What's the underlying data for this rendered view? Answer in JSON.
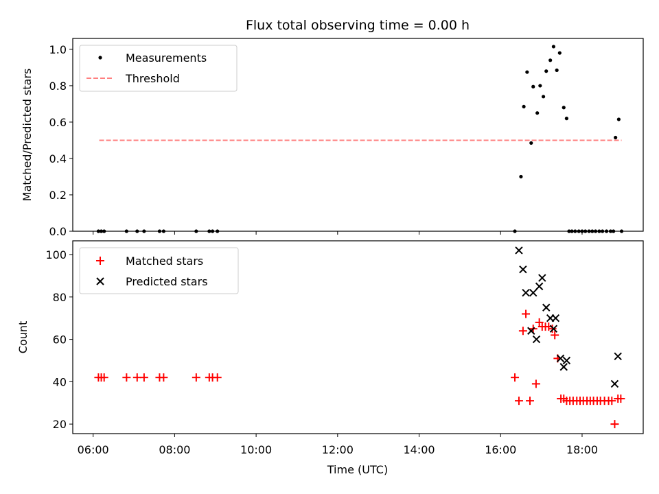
{
  "chart_data": {
    "title": "Flux total observing time = 0.00 h",
    "xlabel": "Time (UTC)",
    "x_unit": "hours UTC",
    "xlim": [
      5.5,
      19.5
    ],
    "xticks": [
      6,
      8,
      10,
      12,
      14,
      16,
      18
    ],
    "xtick_labels": [
      "06:00",
      "08:00",
      "10:00",
      "12:00",
      "14:00",
      "16:00",
      "18:00"
    ],
    "panels": [
      {
        "type": "scatter",
        "ylabel": "Matched/Predicted stars",
        "ylim": [
          0,
          1.06
        ],
        "yticks": [
          0.0,
          0.2,
          0.4,
          0.6,
          0.8,
          1.0
        ],
        "ytick_labels": [
          "0.0",
          "0.2",
          "0.4",
          "0.6",
          "0.8",
          "1.0"
        ],
        "legend": "top-left",
        "series": [
          {
            "name": "Measurements",
            "color": "#000000",
            "marker": "dot",
            "x": [
              6.13,
              6.2,
              6.27,
              6.82,
              7.08,
              7.25,
              7.63,
              7.73,
              8.53,
              8.85,
              8.93,
              9.05,
              16.35,
              16.5,
              16.57,
              16.65,
              16.75,
              16.8,
              16.9,
              16.97,
              17.05,
              17.12,
              17.22,
              17.3,
              17.38,
              17.45,
              17.55,
              17.62,
              17.68,
              17.75,
              17.83,
              17.92,
              18.0,
              18.08,
              18.17,
              18.25,
              18.33,
              18.42,
              18.5,
              18.6,
              18.7,
              18.77,
              18.82,
              18.9,
              18.97
            ],
            "y": [
              0,
              0,
              0,
              0,
              0,
              0,
              0,
              0,
              0,
              0,
              0,
              0,
              0,
              0.3,
              0.685,
              0.875,
              0.485,
              0.795,
              0.65,
              0.8,
              0.74,
              0.88,
              0.94,
              1.015,
              0.885,
              0.98,
              0.68,
              0.62,
              0,
              0,
              0,
              0,
              0,
              0,
              0,
              0,
              0,
              0,
              0,
              0,
              0,
              0,
              0.515,
              0.615,
              0
            ]
          },
          {
            "name": "Threshold",
            "color": "#ff7f7f",
            "marker": "dashed-line",
            "x": [
              6.15,
              18.97
            ],
            "y": [
              0.5,
              0.5
            ]
          }
        ]
      },
      {
        "type": "scatter",
        "ylabel": "Count",
        "ylim": [
          15.5,
          106.5
        ],
        "yticks": [
          20,
          40,
          60,
          80,
          100
        ],
        "ytick_labels": [
          "20",
          "40",
          "60",
          "80",
          "100"
        ],
        "legend": "top-left",
        "series": [
          {
            "name": "Matched stars",
            "color": "#ff0000",
            "marker": "plus",
            "x": [
              6.13,
              6.2,
              6.27,
              6.82,
              7.08,
              7.25,
              7.63,
              7.73,
              8.53,
              8.85,
              8.93,
              9.05,
              16.35,
              16.45,
              16.55,
              16.62,
              16.72,
              16.8,
              16.87,
              16.95,
              17.02,
              17.1,
              17.18,
              17.27,
              17.33,
              17.4,
              17.48,
              17.55,
              17.62,
              17.7,
              17.78,
              17.87,
              17.95,
              18.03,
              18.12,
              18.2,
              18.28,
              18.37,
              18.45,
              18.55,
              18.65,
              18.73,
              18.8,
              18.88,
              18.95
            ],
            "y": [
              42,
              42,
              42,
              42,
              42,
              42,
              42,
              42,
              42,
              42,
              42,
              42,
              42,
              31,
              64,
              72,
              31,
              65,
              39,
              68,
              66,
              66,
              66,
              65,
              62,
              51,
              32,
              32,
              31,
              31,
              31,
              31,
              31,
              31,
              31,
              31,
              31,
              31,
              31,
              31,
              31,
              31,
              20,
              32,
              32
            ]
          },
          {
            "name": "Predicted stars",
            "color": "#000000",
            "marker": "x",
            "x": [
              16.45,
              16.55,
              16.62,
              16.75,
              16.8,
              16.88,
              16.95,
              17.02,
              17.12,
              17.22,
              17.3,
              17.35,
              17.47,
              17.55,
              17.62,
              18.8,
              18.88
            ],
            "y": [
              102,
              93,
              82,
              64,
              82,
              60,
              85,
              89,
              75,
              70,
              65,
              70,
              51,
              47,
              50,
              39,
              52
            ]
          }
        ]
      }
    ]
  }
}
